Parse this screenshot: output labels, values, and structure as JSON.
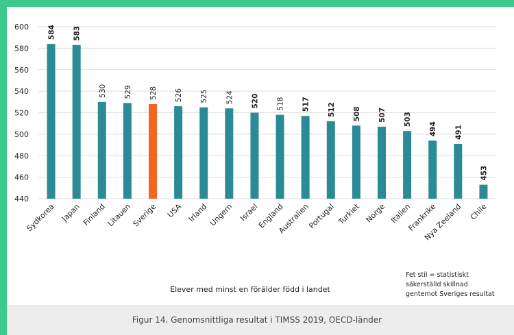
{
  "chart_data": {
    "type": "bar",
    "subtitle": "Elever med minst en förälder född i landet",
    "note": [
      "Fet stil = statistiskt",
      "säkerställd skillnad",
      "gentemot Sveriges resultat"
    ],
    "caption": "Figur 14. Genomsnittliga resultat i TIMSS 2019, OECD-länder",
    "categories": [
      "Sydkorea",
      "Japan",
      "Finland",
      "Litauen",
      "Sverige",
      "USA",
      "Irland",
      "Ungern",
      "Israel",
      "England",
      "Australien",
      "Portugal",
      "Turkiet",
      "Norge",
      "Italien",
      "Frankrike",
      "Nya Zeeland",
      "Chile"
    ],
    "values": [
      584,
      583,
      530,
      529,
      528,
      526,
      525,
      524,
      520,
      518,
      517,
      512,
      508,
      507,
      503,
      494,
      491,
      453
    ],
    "colors": [
      "#2a8a96",
      "#2a8a96",
      "#2a8a96",
      "#2a8a96",
      "#f26522",
      "#2a8a96",
      "#2a8a96",
      "#2a8a96",
      "#2a8a96",
      "#2a8a96",
      "#2a8a96",
      "#2a8a96",
      "#2a8a96",
      "#2a8a96",
      "#2a8a96",
      "#2a8a96",
      "#2a8a96",
      "#2a8a96"
    ],
    "bold": [
      true,
      true,
      false,
      false,
      false,
      false,
      false,
      false,
      true,
      false,
      true,
      true,
      true,
      true,
      true,
      true,
      true,
      true
    ],
    "ylim": [
      440,
      600
    ],
    "yticks": [
      440,
      460,
      480,
      500,
      520,
      540,
      560,
      580,
      600
    ],
    "grid": true
  }
}
